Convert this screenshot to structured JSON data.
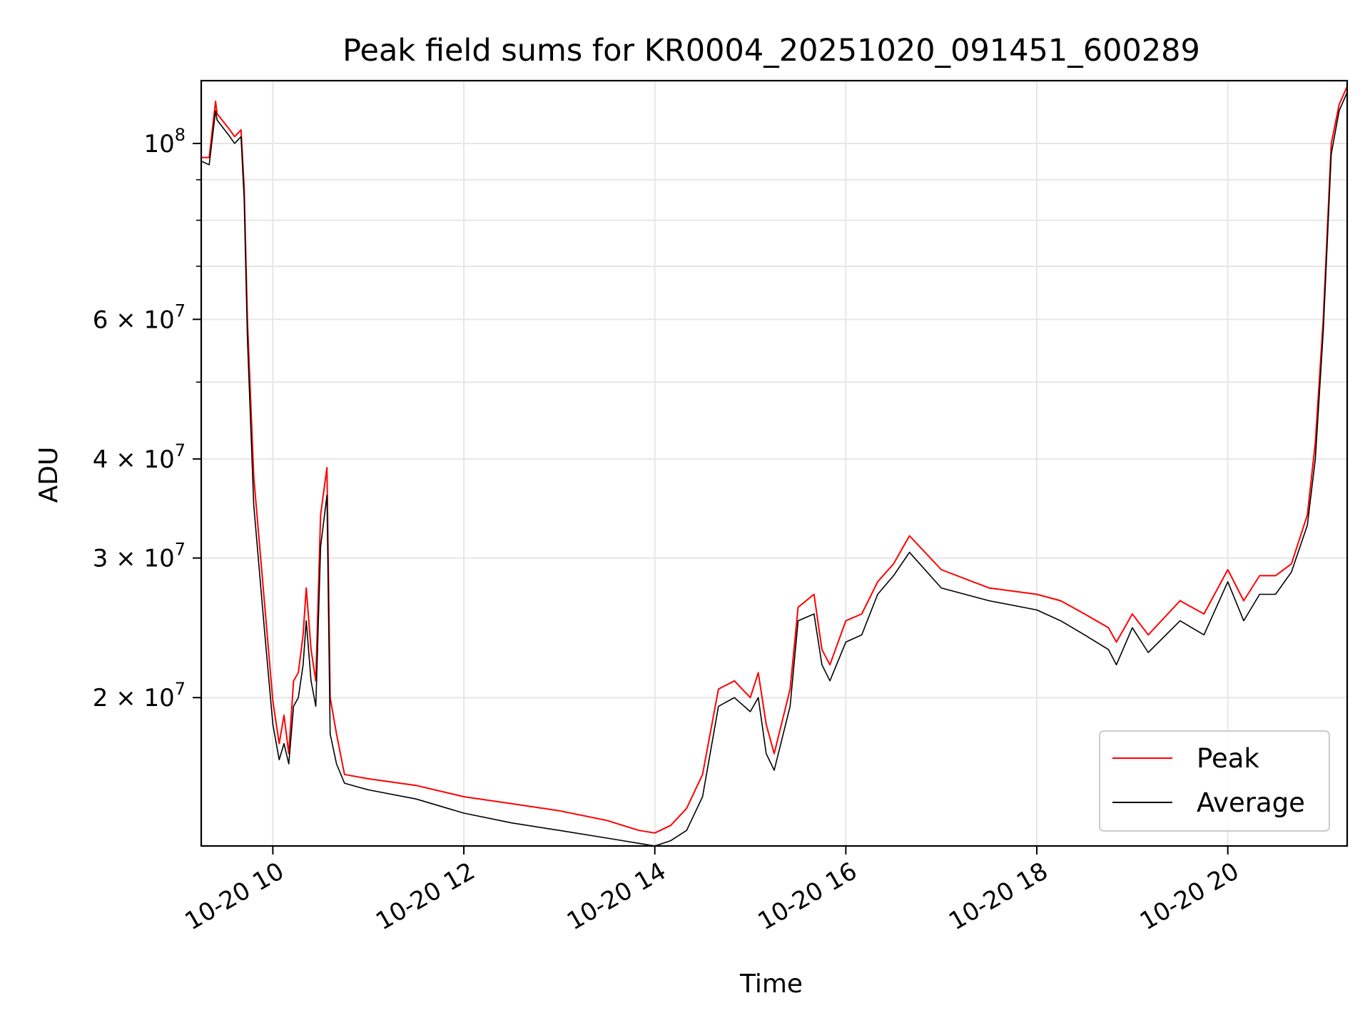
{
  "chart_data": {
    "type": "line",
    "title": "Peak field sums for KR0004_20251020_091451_600289",
    "xlabel": "Time",
    "ylabel": "ADU",
    "x_unit": "datetime (MM-DD HH)",
    "xlim": [
      "10-20 09:15",
      "10-20 21:15"
    ],
    "ylim": [
      13000000,
      120000000
    ],
    "yscale": "log",
    "grid": true,
    "legend_position": "lower right",
    "x_ticks": [
      {
        "label": "10-20 10",
        "time": "10-20 10:00"
      },
      {
        "label": "10-20 12",
        "time": "10-20 12:00"
      },
      {
        "label": "10-20 14",
        "time": "10-20 14:00"
      },
      {
        "label": "10-20 16",
        "time": "10-20 16:00"
      },
      {
        "label": "10-20 18",
        "time": "10-20 18:00"
      },
      {
        "label": "10-20 20",
        "time": "10-20 20:00"
      }
    ],
    "y_ticks": [
      {
        "value": 20000000,
        "mantissa": "2 × 10",
        "exp": "7"
      },
      {
        "value": 30000000,
        "mantissa": "3 × 10",
        "exp": "7"
      },
      {
        "value": 40000000,
        "mantissa": "4 × 10",
        "exp": "7"
      },
      {
        "value": 60000000,
        "mantissa": "6 × 10",
        "exp": "7"
      },
      {
        "value": 100000000,
        "mantissa": "10",
        "exp": "8"
      }
    ],
    "y_minor_ticks": [
      50000000,
      70000000,
      80000000,
      90000000
    ],
    "series": [
      {
        "name": "Peak",
        "color": "#ff0000",
        "x": [
          "09:15",
          "09:20",
          "09:24",
          "09:25",
          "09:33",
          "09:36",
          "09:40",
          "09:42",
          "09:44",
          "09:48",
          "09:55",
          "10:00",
          "10:04",
          "10:07",
          "10:10",
          "10:13",
          "10:16",
          "10:19",
          "10:21",
          "10:24",
          "10:27",
          "10:30",
          "10:34",
          "10:36",
          "10:40",
          "10:45",
          "11:00",
          "11:30",
          "12:00",
          "12:30",
          "13:00",
          "13:30",
          "13:50",
          "14:00",
          "14:10",
          "14:20",
          "14:30",
          "14:40",
          "14:50",
          "15:00",
          "15:05",
          "15:10",
          "15:15",
          "15:25",
          "15:30",
          "15:40",
          "15:45",
          "15:50",
          "16:00",
          "16:10",
          "16:20",
          "16:30",
          "16:40",
          "17:00",
          "17:30",
          "18:00",
          "18:15",
          "18:30",
          "18:45",
          "18:50",
          "19:00",
          "19:10",
          "19:30",
          "19:45",
          "20:00",
          "20:10",
          "20:20",
          "20:30",
          "20:40",
          "20:50",
          "20:55",
          "21:00",
          "21:05",
          "21:10",
          "21:15"
        ],
        "y": [
          96000000,
          96000000,
          113000000,
          109000000,
          104000000,
          102000000,
          104000000,
          88000000,
          60000000,
          38000000,
          26000000,
          19800000,
          17500000,
          19000000,
          17000000,
          21000000,
          21500000,
          24000000,
          27500000,
          23000000,
          21000000,
          34000000,
          39000000,
          20000000,
          18000000,
          16000000,
          15800000,
          15500000,
          15000000,
          14700000,
          14400000,
          14000000,
          13600000,
          13500000,
          13800000,
          14500000,
          16000000,
          20500000,
          21000000,
          20000000,
          21500000,
          18500000,
          17000000,
          20500000,
          26000000,
          27000000,
          23000000,
          22000000,
          25000000,
          25500000,
          28000000,
          29500000,
          32000000,
          29000000,
          27500000,
          27000000,
          26500000,
          25500000,
          24500000,
          23500000,
          25500000,
          24000000,
          26500000,
          25500000,
          29000000,
          26500000,
          28500000,
          28500000,
          29500000,
          34000000,
          42000000,
          60000000,
          100000000,
          112000000,
          118000000
        ]
      },
      {
        "name": "Average",
        "color": "#000000",
        "x": [
          "09:15",
          "09:20",
          "09:24",
          "09:25",
          "09:33",
          "09:36",
          "09:40",
          "09:42",
          "09:44",
          "09:48",
          "09:55",
          "10:00",
          "10:04",
          "10:07",
          "10:10",
          "10:13",
          "10:16",
          "10:19",
          "10:21",
          "10:24",
          "10:27",
          "10:30",
          "10:34",
          "10:36",
          "10:40",
          "10:45",
          "11:00",
          "11:30",
          "12:00",
          "12:30",
          "13:00",
          "13:30",
          "13:50",
          "14:00",
          "14:10",
          "14:20",
          "14:30",
          "14:40",
          "14:50",
          "15:00",
          "15:05",
          "15:10",
          "15:15",
          "15:25",
          "15:30",
          "15:40",
          "15:45",
          "15:50",
          "16:00",
          "16:10",
          "16:20",
          "16:30",
          "16:40",
          "17:00",
          "17:30",
          "18:00",
          "18:15",
          "18:30",
          "18:45",
          "18:50",
          "19:00",
          "19:10",
          "19:30",
          "19:45",
          "20:00",
          "20:10",
          "20:20",
          "20:30",
          "20:40",
          "20:50",
          "20:55",
          "21:00",
          "21:05",
          "21:10",
          "21:15"
        ],
        "y": [
          95000000,
          94000000,
          110000000,
          107000000,
          102000000,
          100000000,
          102000000,
          85000000,
          57000000,
          35000000,
          24000000,
          18500000,
          16700000,
          17500000,
          16500000,
          19500000,
          20000000,
          22000000,
          25000000,
          21000000,
          19500000,
          31000000,
          36000000,
          18000000,
          16500000,
          15600000,
          15300000,
          14900000,
          14300000,
          13900000,
          13600000,
          13300000,
          13100000,
          13000000,
          13200000,
          13600000,
          15000000,
          19500000,
          20000000,
          19200000,
          20000000,
          17000000,
          16200000,
          19500000,
          25000000,
          25500000,
          22000000,
          21000000,
          23500000,
          24000000,
          27000000,
          28500000,
          30500000,
          27500000,
          26500000,
          25800000,
          25000000,
          24000000,
          23000000,
          22000000,
          24500000,
          22800000,
          25000000,
          24000000,
          28000000,
          25000000,
          27000000,
          27000000,
          28800000,
          33000000,
          40000000,
          58000000,
          97000000,
          110000000,
          116000000
        ]
      }
    ]
  }
}
